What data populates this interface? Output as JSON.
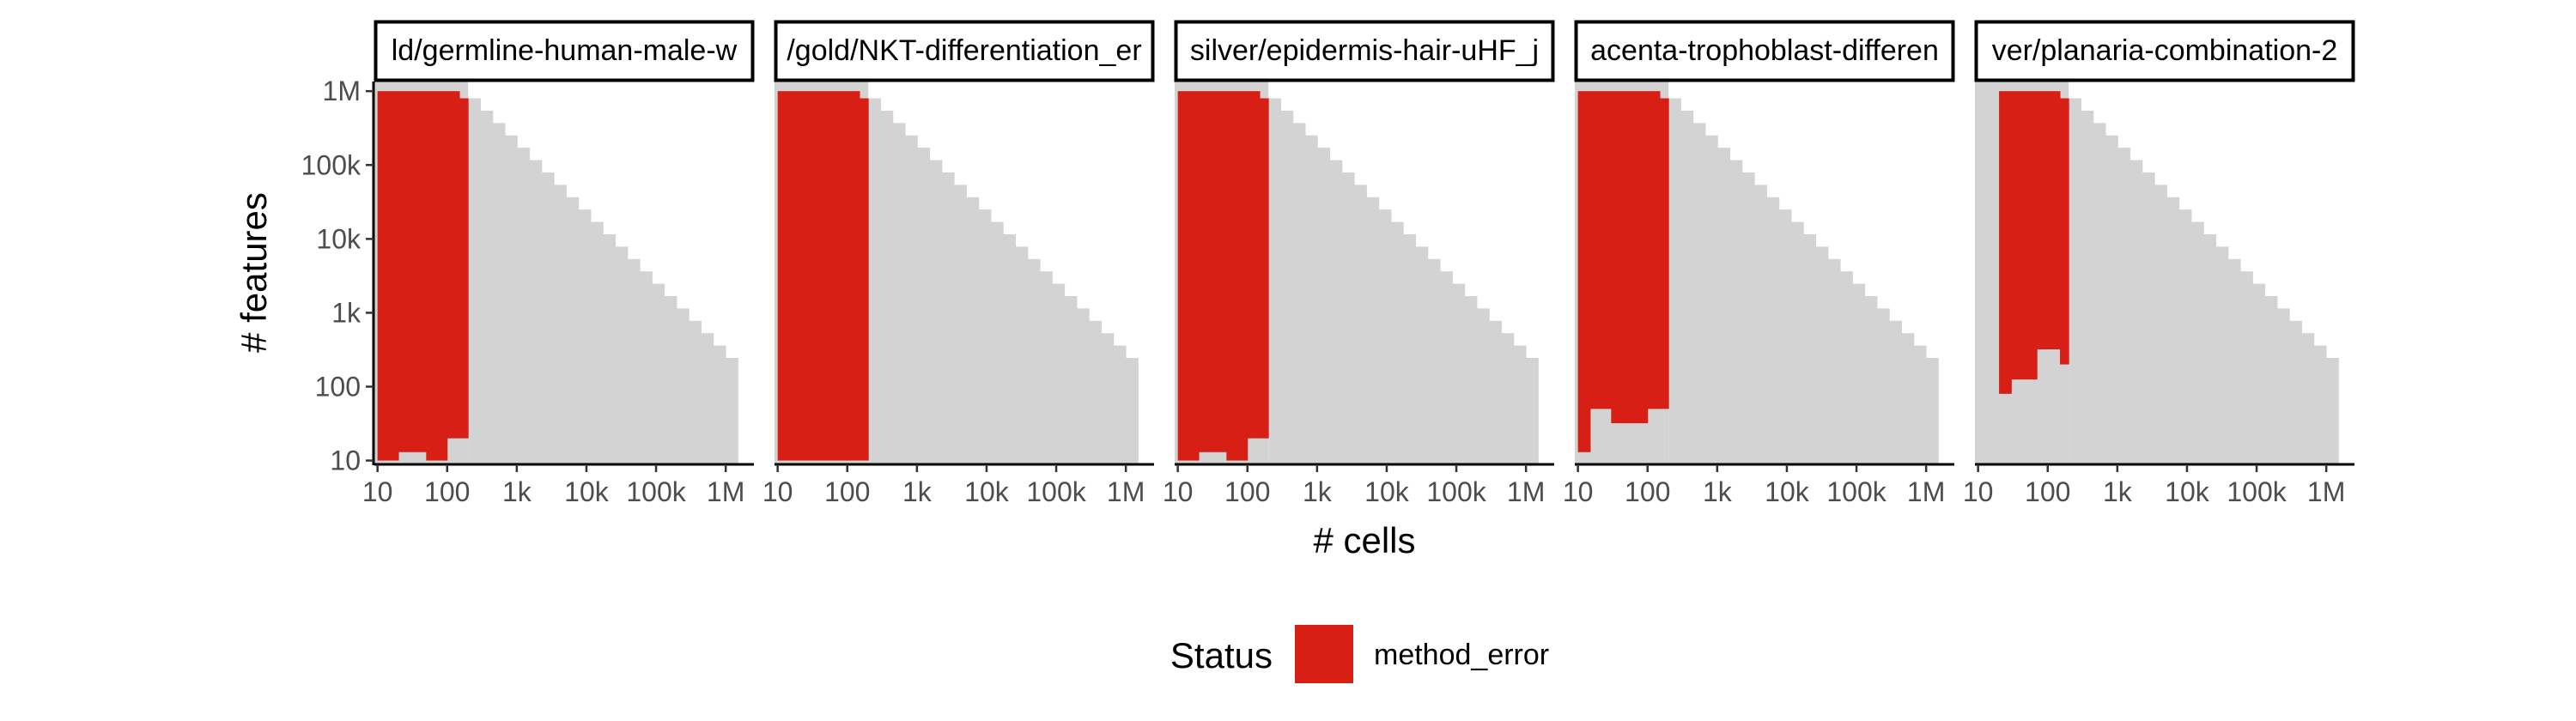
{
  "chart_data": {
    "type": "heatmap",
    "xlabel": "# cells",
    "ylabel": "# features",
    "scale": "log10",
    "xlim": [
      10,
      1000000
    ],
    "ylim": [
      10,
      1000000
    ],
    "x_ticks": [
      "10",
      "100",
      "1k",
      "10k",
      "100k",
      "1M"
    ],
    "y_ticks": [
      "10",
      "100",
      "1k",
      "10k",
      "100k",
      "1M"
    ],
    "background_color": "#d3d3d3",
    "status_color": "#d71f16",
    "legend": {
      "title": "Status",
      "position": "bottom",
      "items": [
        {
          "label": "method_error",
          "color": "#d71f16"
        }
      ]
    },
    "panels": [
      {
        "title": "ld/germline-human-male-w",
        "method_error_columns": [
          {
            "x": [
              10,
              20
            ],
            "y": [
              10,
              1000000
            ]
          },
          {
            "x": [
              20,
              50
            ],
            "y": [
              13,
              1000000
            ]
          },
          {
            "x": [
              50,
              100
            ],
            "y": [
              10,
              1000000
            ]
          },
          {
            "x": [
              100,
              150
            ],
            "y": [
              20,
              1000000
            ]
          },
          {
            "x": [
              150,
              200
            ],
            "y": [
              20,
              800000
            ]
          }
        ]
      },
      {
        "title": "/gold/NKT-differentiation_er",
        "method_error_columns": [
          {
            "x": [
              10,
              100
            ],
            "y": [
              10,
              1000000
            ]
          },
          {
            "x": [
              100,
              150
            ],
            "y": [
              10,
              1000000
            ]
          },
          {
            "x": [
              150,
              200
            ],
            "y": [
              10,
              800000
            ]
          }
        ]
      },
      {
        "title": "silver/epidermis-hair-uHF_j",
        "method_error_columns": [
          {
            "x": [
              10,
              20
            ],
            "y": [
              10,
              1000000
            ]
          },
          {
            "x": [
              20,
              50
            ],
            "y": [
              13,
              1000000
            ]
          },
          {
            "x": [
              50,
              100
            ],
            "y": [
              10,
              1000000
            ]
          },
          {
            "x": [
              100,
              150
            ],
            "y": [
              20,
              1000000
            ]
          },
          {
            "x": [
              150,
              200
            ],
            "y": [
              20,
              800000
            ]
          }
        ]
      },
      {
        "title": "acenta-trophoblast-differen",
        "method_error_columns": [
          {
            "x": [
              10,
              15
            ],
            "y": [
              13,
              1000000
            ]
          },
          {
            "x": [
              15,
              30
            ],
            "y": [
              50,
              1000000
            ]
          },
          {
            "x": [
              30,
              100
            ],
            "y": [
              32,
              1000000
            ]
          },
          {
            "x": [
              100,
              150
            ],
            "y": [
              50,
              1000000
            ]
          },
          {
            "x": [
              150,
              200
            ],
            "y": [
              50,
              800000
            ]
          }
        ]
      },
      {
        "title": "ver/planaria-combination-2",
        "method_error_columns": [
          {
            "x": [
              20,
              30
            ],
            "y": [
              80,
              1000000
            ]
          },
          {
            "x": [
              30,
              70
            ],
            "y": [
              125,
              1000000
            ]
          },
          {
            "x": [
              70,
              150
            ],
            "y": [
              320,
              1000000
            ]
          },
          {
            "x": [
              150,
              200
            ],
            "y": [
              200,
              800000
            ]
          }
        ]
      }
    ]
  }
}
